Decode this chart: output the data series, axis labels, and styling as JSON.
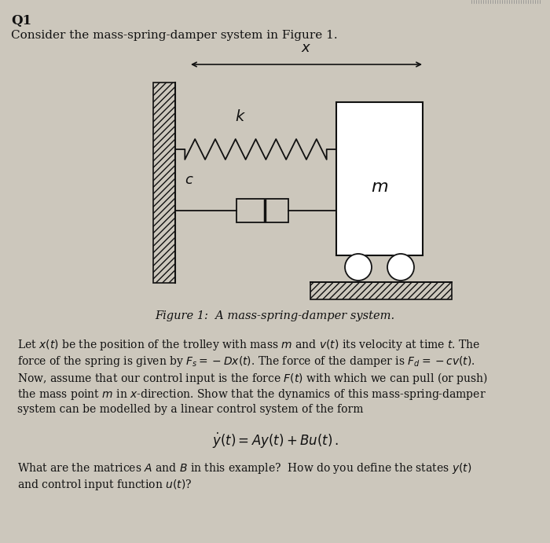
{
  "bg_color": "#ccc7bc",
  "title": "Q1",
  "subtitle": "Consider the mass-spring-damper system in Figure 1.",
  "fig_caption": "Figure 1:  A mass-spring-damper system.",
  "body_text_lines": [
    "Let $x(t)$ be the position of the trolley with mass $m$ and $v(t)$ its velocity at time $t$. The",
    "force of the spring is given by $F_s = -Dx(t)$. The force of the damper is $F_d = -cv(t)$.",
    "Now, assume that our control input is the force $F(t)$ with which we can pull (or push)",
    "the mass point $m$ in $x$-direction. Show that the dynamics of this mass-spring-damper",
    "system can be modelled by a linear control system of the form"
  ],
  "equation": "$\\dot{y}(t) = Ay(t) + Bu(t)\\,.$",
  "footer_lines": [
    "What are the matrices $A$ and $B$ in this example?  How do you define the states $y(t)$",
    "and control input function $u(t)$?"
  ],
  "label_color": "#111111"
}
